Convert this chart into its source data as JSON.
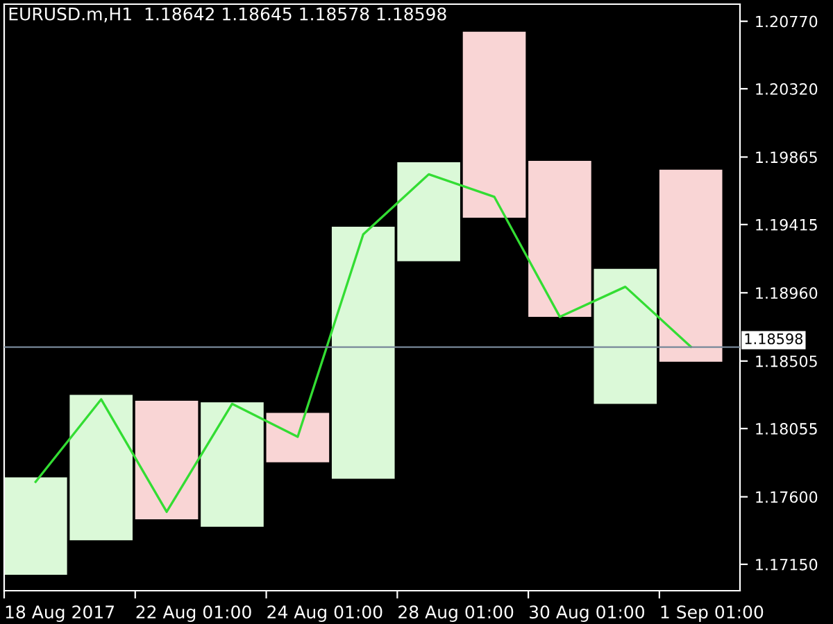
{
  "chart_data": {
    "type": "bar",
    "title": "EURUSD.m,H1  1.18642 1.18645 1.18578 1.18598",
    "categories": [
      "18 Aug 2017",
      null,
      "22 Aug 01:00",
      null,
      "24 Aug 01:00",
      null,
      "28 Aug 01:00",
      null,
      "30 Aug 01:00",
      null,
      "1 Sep 01:00"
    ],
    "base": [
      1.1708,
      1.1731,
      1.1745,
      1.174,
      1.1783,
      1.1772,
      1.1917,
      1.1946,
      1.188,
      1.1822,
      1.185
    ],
    "values": [
      0.0065,
      0.0097,
      0.0079,
      0.0083,
      0.0033,
      0.0168,
      0.0066,
      0.0124,
      0.0104,
      0.009,
      0.0128
    ],
    "colors": [
      "#dbf9d8",
      "#dbf9d8",
      "#f9d5d5",
      "#dbf9d8",
      "#f9d5d5",
      "#dbf9d8",
      "#dbf9d8",
      "#f9d5d5",
      "#f9d5d5",
      "#dbf9d8",
      "#f9d5d5"
    ],
    "series": [
      {
        "type": "line",
        "color": "#33dd33",
        "values": [
          1.177,
          1.1825,
          1.175,
          1.1822,
          1.18,
          1.1935,
          1.1975,
          1.196,
          1.188,
          1.19,
          1.186
        ]
      }
    ],
    "ylim": [
      1.16974,
      1.20884
    ],
    "yticks": [
      {
        "value": 1.1715,
        "label": "1.17150"
      },
      {
        "value": 1.176,
        "label": "1.17600"
      },
      {
        "value": 1.18055,
        "label": "1.18055"
      },
      {
        "value": 1.18505,
        "label": "1.18505"
      },
      {
        "value": 1.1896,
        "label": "1.18960"
      },
      {
        "value": 1.19415,
        "label": "1.19415"
      },
      {
        "value": 1.19865,
        "label": "1.19865"
      },
      {
        "value": 1.2032,
        "label": "1.20320"
      },
      {
        "value": 1.2077,
        "label": "1.20770"
      }
    ],
    "ref_lines": [
      {
        "axis": "y",
        "value": 1.18598,
        "label": "1.18598",
        "color": "#778899"
      }
    ]
  }
}
